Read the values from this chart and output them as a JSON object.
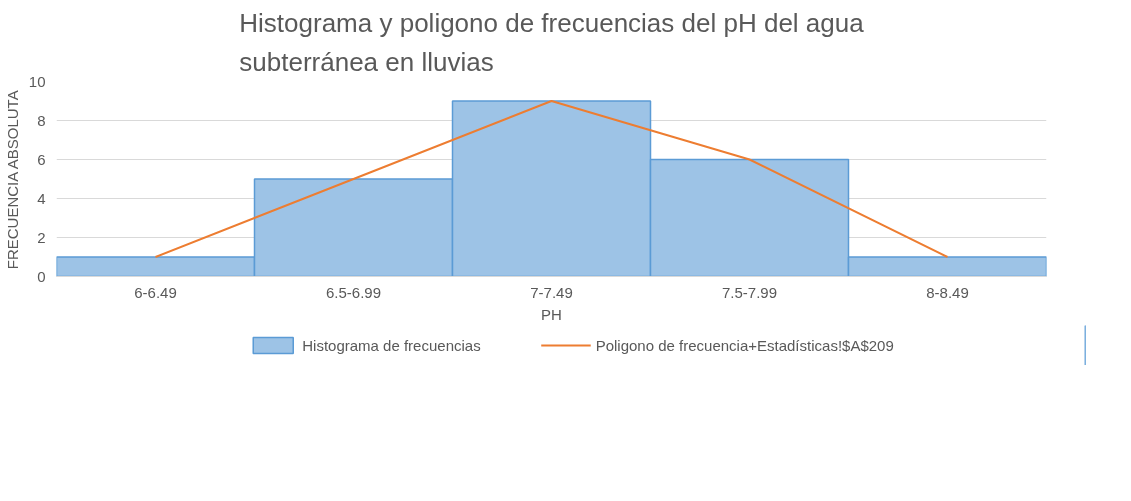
{
  "chart_data": {
    "type": "bar",
    "title": "Histograma y poligono de frecuencias del pH del agua subterránea en lluvias",
    "xlabel": "PH",
    "ylabel": "FRECUENCIA ABSOLUTA",
    "categories": [
      "6-6.49",
      "6.5-6.99",
      "7-7.49",
      "7.5-7.99",
      "8-8.49"
    ],
    "series": [
      {
        "name": "Histograma de frecuencias",
        "color": "#9dc3e6",
        "values": [
          1,
          5,
          9,
          6,
          1
        ]
      },
      {
        "name": "Poligono de frecuencia+Estadísticas!$A$209",
        "type": "line",
        "color": "#ed7d31",
        "values": [
          1,
          5,
          9,
          6,
          1
        ]
      }
    ],
    "ylim": [
      0,
      10
    ],
    "yticks": [
      0,
      2,
      4,
      6,
      8,
      10
    ],
    "grid": "y",
    "legend": "bottom"
  }
}
